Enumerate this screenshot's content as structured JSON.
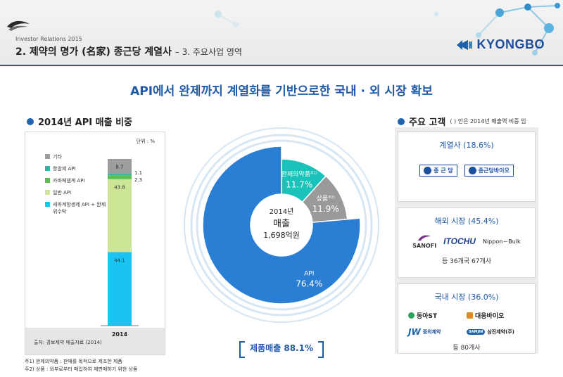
{
  "header": {
    "ir_label": "Investor Relations 2015",
    "title": "2. 제약의 명가 (名家) 종근당 계열사",
    "subtitle": "– 3. 주요사업 영역",
    "brand": "KYONGBO"
  },
  "headline": "API에서 완제까지 계열화를 기반으로한 국내 · 외 시장 확보",
  "left_section": {
    "title": "2014년 API 매출 비중",
    "unit": "단위 : %",
    "source": "출처: 경보제약 매출자료 (2014)",
    "footnotes": [
      "주1) 완제의약품 : 판매를 목적으로 제조한 제품",
      "주2) 상품 : 외부로부터 매입하여 재판매하기 위한 상품"
    ]
  },
  "customers": {
    "title": "주요 고객",
    "note": "( ) 안은 2014년 매출액 비중 임",
    "cards": [
      {
        "title": "계열사 (18.6%)",
        "logos": [
          "종 근 당",
          "종근당바이오"
        ]
      },
      {
        "title": "해외 시장 (45.4%)",
        "logos": [
          "SANOFI",
          "ITOCHU",
          "Nippon－Bulk"
        ],
        "count": "등 36개국 67개사"
      },
      {
        "title": "국내 시장 (36.0%)",
        "logos": [
          "동아ST",
          "대웅바이오",
          "중외제약",
          "SAMJIN",
          "삼진제약(주)"
        ],
        "count": "등 80개사"
      }
    ]
  },
  "chart_data": [
    {
      "type": "bar",
      "stacked": true,
      "categories": [
        "2014"
      ],
      "series": [
        {
          "name": "세파계항생제 API + 완제 위수탁",
          "values": [
            44.1
          ],
          "color": "#1cc3f2"
        },
        {
          "name": "일반 API",
          "values": [
            43.8
          ],
          "color": "#cde597"
        },
        {
          "name": "카바페넴계 API",
          "values": [
            2.3
          ],
          "color": "#5bbf4f"
        },
        {
          "name": "항암제 API",
          "values": [
            1.1
          ],
          "color": "#31b7a8"
        },
        {
          "name": "기타",
          "values": [
            8.7
          ],
          "color": "#9d9d9d"
        }
      ],
      "unit": "단위 : %"
    },
    {
      "type": "pie",
      "donut": true,
      "center_label": {
        "year": "2014년",
        "label": "매출",
        "total": "1,698억원"
      },
      "slices": [
        {
          "label": "API",
          "value": 76.4,
          "value_text": "76.4%",
          "color": "#2a7fd4"
        },
        {
          "label": "완제의약품",
          "note": "주1)",
          "value": 11.7,
          "value_text": "11.7%",
          "color": "#19c3b9"
        },
        {
          "label": "상품",
          "note": "주2)",
          "value": 11.9,
          "value_text": "11.9%",
          "color": "#9a9a9a"
        }
      ],
      "product_total": "제품매출 88.1%"
    }
  ]
}
